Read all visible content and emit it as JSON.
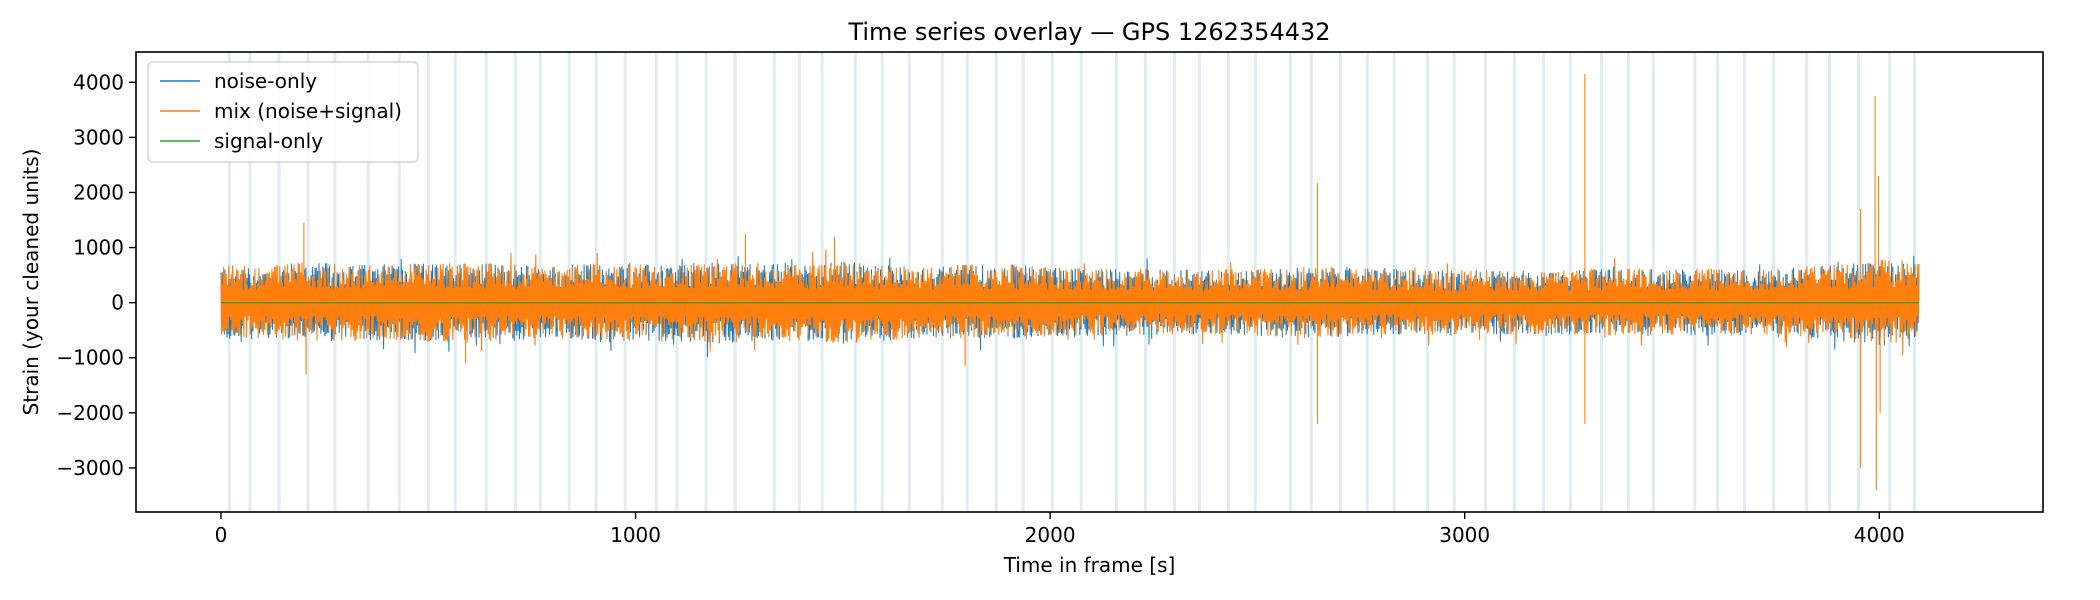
{
  "chart_data": {
    "type": "line",
    "title": "Time series overlay — GPS 1262354432",
    "xlabel": "Time in frame [s]",
    "ylabel": "Strain (your cleaned units)",
    "xlim": [
      -205,
      4395
    ],
    "ylim": [
      -3800,
      4550
    ],
    "x_range": [
      0,
      4096
    ],
    "xticks": [
      0,
      1000,
      2000,
      3000,
      4000
    ],
    "yticks": [
      -3000,
      -2000,
      -1000,
      0,
      1000,
      2000,
      3000,
      4000
    ],
    "xtick_labels": [
      "0",
      "1000",
      "2000",
      "3000",
      "4000"
    ],
    "ytick_labels": [
      "−3000",
      "−2000",
      "−1000",
      "0",
      "1000",
      "2000",
      "3000",
      "4000"
    ],
    "grid": false,
    "legend": "top-left",
    "series": [
      {
        "name": "noise-only",
        "color": "#1f77b4",
        "typical_amplitude": 700
      },
      {
        "name": "mix (noise+signal)",
        "color": "#ff7f0e",
        "typical_amplitude": 700
      },
      {
        "name": "signal-only",
        "color": "#2ca02c",
        "value": 0
      }
    ],
    "envelope": {
      "x": [
        0,
        100,
        200,
        300,
        400,
        500,
        600,
        700,
        800,
        900,
        1000,
        1100,
        1200,
        1300,
        1400,
        1500,
        1600,
        1700,
        1800,
        1900,
        2000,
        2100,
        2200,
        2300,
        2400,
        2500,
        2600,
        2700,
        2800,
        2900,
        3000,
        3100,
        3200,
        3300,
        3400,
        3500,
        3600,
        3700,
        3800,
        3900,
        4000,
        4096
      ],
      "upper": [
        700,
        650,
        750,
        700,
        700,
        720,
        750,
        700,
        680,
        720,
        700,
        700,
        750,
        720,
        700,
        750,
        700,
        650,
        700,
        700,
        650,
        620,
        620,
        600,
        600,
        620,
        650,
        650,
        620,
        600,
        600,
        600,
        600,
        620,
        620,
        620,
        620,
        600,
        650,
        700,
        800,
        700
      ],
      "lower": [
        -700,
        -650,
        -700,
        -700,
        -700,
        -720,
        -700,
        -700,
        -650,
        -700,
        -700,
        -700,
        -750,
        -700,
        -700,
        -750,
        -700,
        -650,
        -650,
        -650,
        -620,
        -600,
        -600,
        -580,
        -580,
        -600,
        -650,
        -620,
        -600,
        -580,
        -580,
        -580,
        -580,
        -600,
        -600,
        -600,
        -600,
        -600,
        -650,
        -700,
        -800,
        -650
      ]
    },
    "spikes": [
      {
        "x": 200,
        "value": 1450
      },
      {
        "x": 205,
        "value": -1300
      },
      {
        "x": 590,
        "value": -1100
      },
      {
        "x": 1265,
        "value": 1250
      },
      {
        "x": 1480,
        "value": 1200
      },
      {
        "x": 1795,
        "value": -1150
      },
      {
        "x": 2645,
        "value": 2170
      },
      {
        "x": 2645,
        "value": -2200
      },
      {
        "x": 3290,
        "value": 4150
      },
      {
        "x": 3290,
        "value": -2200
      },
      {
        "x": 3955,
        "value": 1700
      },
      {
        "x": 3955,
        "value": -3000
      },
      {
        "x": 3990,
        "value": 3750
      },
      {
        "x": 3993,
        "value": -3400
      },
      {
        "x": 3998,
        "value": 2300
      },
      {
        "x": 4002,
        "value": -2000
      }
    ],
    "shaded_intervals": [
      20,
      70,
      140,
      210,
      275,
      355,
      430,
      500,
      565,
      640,
      710,
      770,
      840,
      905,
      975,
      1050,
      1100,
      1170,
      1240,
      1335,
      1395,
      1450,
      1530,
      1595,
      1660,
      1740,
      1800,
      1870,
      1935,
      2005,
      2075,
      2160,
      2230,
      2300,
      2360,
      2430,
      2495,
      2580,
      2630,
      2700,
      2765,
      2830,
      2910,
      2975,
      3050,
      3120,
      3190,
      3255,
      3330,
      3395,
      3455,
      3555,
      3610,
      3675,
      3745,
      3825,
      3880,
      3950,
      4025,
      4085
    ],
    "shaded_color": "#d0e4f0"
  }
}
